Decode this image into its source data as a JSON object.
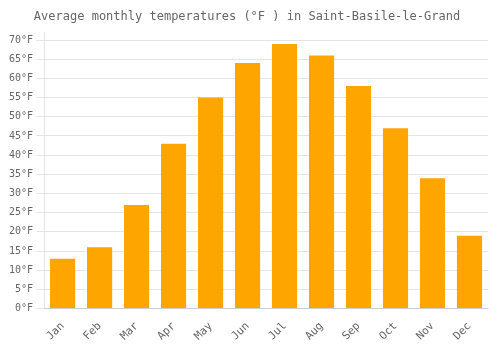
{
  "chart_data": {
    "type": "bar",
    "title": "Average monthly temperatures (°F ) in Saint-Basile-le-Grand",
    "categories": [
      "Jan",
      "Feb",
      "Mar",
      "Apr",
      "May",
      "Jun",
      "Jul",
      "Aug",
      "Sep",
      "Oct",
      "Nov",
      "Dec"
    ],
    "values": [
      13,
      16,
      27,
      43,
      55,
      64,
      69,
      66,
      58,
      47,
      34,
      19
    ],
    "color": "#FFA500",
    "ylim": [
      0,
      72
    ],
    "yticks": [
      {
        "value": 0,
        "label": "0°F"
      },
      {
        "value": 5,
        "label": "5°F"
      },
      {
        "value": 10,
        "label": "10°F"
      },
      {
        "value": 15,
        "label": "15°F"
      },
      {
        "value": 20,
        "label": "20°F"
      },
      {
        "value": 25,
        "label": "25°F"
      },
      {
        "value": 30,
        "label": "30°F"
      },
      {
        "value": 35,
        "label": "35°F"
      },
      {
        "value": 40,
        "label": "40°F"
      },
      {
        "value": 45,
        "label": "45°F"
      },
      {
        "value": 50,
        "label": "50°F"
      },
      {
        "value": 55,
        "label": "55°F"
      },
      {
        "value": 60,
        "label": "60°F"
      },
      {
        "value": 65,
        "label": "65°F"
      },
      {
        "value": 70,
        "label": "70°F"
      }
    ],
    "grid": true
  }
}
